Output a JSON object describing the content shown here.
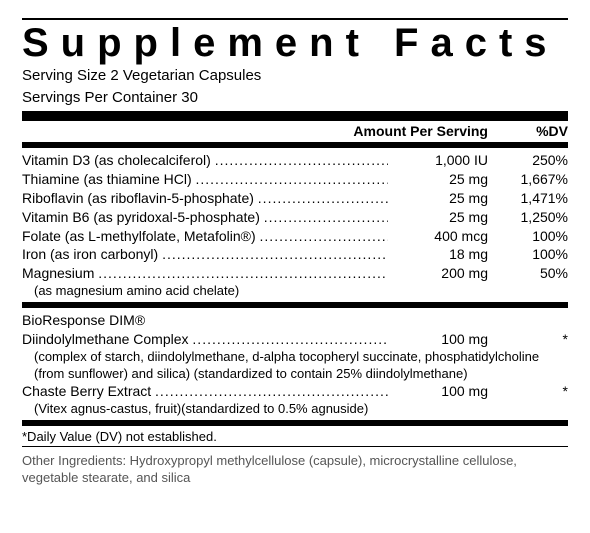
{
  "title": "Supplement Facts",
  "serving_size": "Serving Size 2 Vegetarian Capsules",
  "servings_per_container": "Servings Per Container 30",
  "headers": {
    "amount": "Amount Per Serving",
    "dv": "%DV"
  },
  "section1": [
    {
      "name": "Vitamin D3 (as cholecalciferol)",
      "amount": "1,000 IU",
      "dv": "250%"
    },
    {
      "name": "Thiamine (as thiamine HCl)",
      "amount": "25 mg",
      "dv": "1,667%"
    },
    {
      "name": "Riboflavin (as riboflavin-5-phosphate)",
      "amount": "25 mg",
      "dv": "1,471%"
    },
    {
      "name": "Vitamin B6 (as pyridoxal-5-phosphate)",
      "amount": "25 mg",
      "dv": "1,250%"
    },
    {
      "name": "Folate (as L-methylfolate, Metafolin®)",
      "amount": "400 mcg",
      "dv": "100%"
    },
    {
      "name": "Iron (as iron carbonyl)",
      "amount": "18 mg",
      "dv": "100%"
    },
    {
      "name": "Magnesium",
      "amount": "200 mg",
      "dv": "50%",
      "sub": "(as magnesium amino acid chelate)"
    }
  ],
  "section2_label": "BioResponse DIM®",
  "section2": [
    {
      "name": "Diindolylmethane Complex",
      "amount": "100 mg",
      "dv": "*",
      "sub": "(complex of starch, diindolylmethane, d-alpha tocopheryl succinate, phosphatidylcholine (from sunflower) and silica) (standardized to contain 25% diindolylmethane)"
    },
    {
      "name": "Chaste Berry Extract",
      "amount": "100 mg",
      "dv": "*",
      "sub": "(Vitex agnus-castus, fruit)(standardized to 0.5% agnuside)"
    }
  ],
  "footnote": "*Daily Value (DV) not established.",
  "other_ingredients": "Other Ingredients: Hydroxypropyl methylcellulose (capsule), microcrystalline cellulose, vegetable stearate, and silica"
}
